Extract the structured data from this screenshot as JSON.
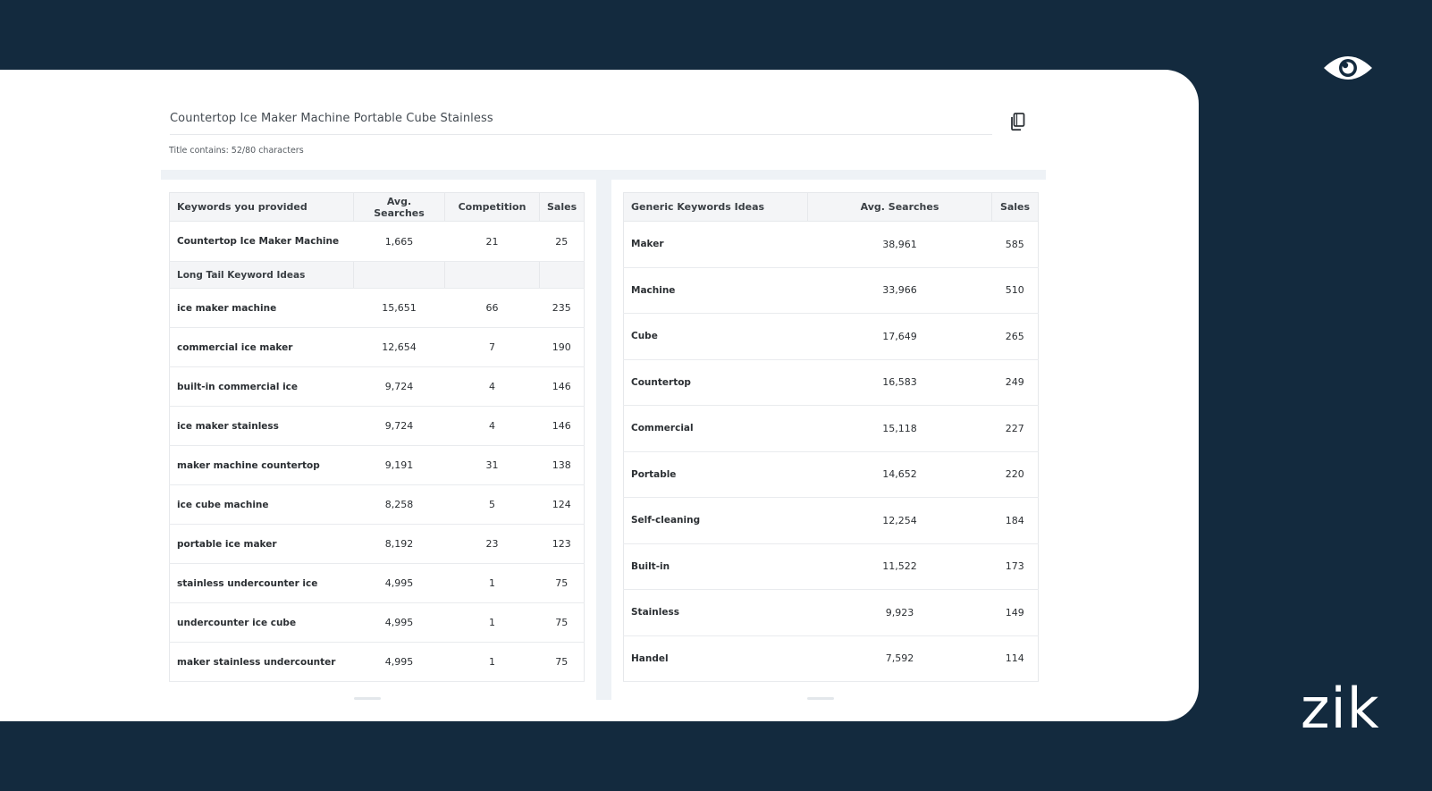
{
  "title": {
    "text": "Countertop Ice Maker Machine Portable Cube Stainless",
    "char_count": "Title contains: 52/80 characters"
  },
  "left_table": {
    "headers": [
      "Keywords you provided",
      "Avg. Searches",
      "Competition",
      "Sales"
    ],
    "provided": [
      "Countertop Ice Maker Machine",
      "1,665",
      "21",
      "25"
    ],
    "section_label": "Long Tail Keyword Ideas",
    "rows": [
      [
        "ice maker machine",
        "15,651",
        "66",
        "235"
      ],
      [
        "commercial ice maker",
        "12,654",
        "7",
        "190"
      ],
      [
        "built-in commercial ice",
        "9,724",
        "4",
        "146"
      ],
      [
        "ice maker stainless",
        "9,724",
        "4",
        "146"
      ],
      [
        "maker machine countertop",
        "9,191",
        "31",
        "138"
      ],
      [
        "ice cube machine",
        "8,258",
        "5",
        "124"
      ],
      [
        "portable ice maker",
        "8,192",
        "23",
        "123"
      ],
      [
        "stainless undercounter ice",
        "4,995",
        "1",
        "75"
      ],
      [
        "undercounter ice cube",
        "4,995",
        "1",
        "75"
      ],
      [
        "maker stainless undercounter",
        "4,995",
        "1",
        "75"
      ]
    ]
  },
  "right_table": {
    "headers": [
      "Generic Keywords Ideas",
      "Avg. Searches",
      "Sales"
    ],
    "rows": [
      [
        "Maker",
        "38,961",
        "585"
      ],
      [
        "Machine",
        "33,966",
        "510"
      ],
      [
        "Cube",
        "17,649",
        "265"
      ],
      [
        "Countertop",
        "16,583",
        "249"
      ],
      [
        "Commercial",
        "15,118",
        "227"
      ],
      [
        "Portable",
        "14,652",
        "220"
      ],
      [
        "Self-cleaning",
        "12,254",
        "184"
      ],
      [
        "Built-in",
        "11,522",
        "173"
      ],
      [
        "Stainless",
        "9,923",
        "149"
      ],
      [
        "Handel",
        "7,592",
        "114"
      ]
    ]
  },
  "icons": {
    "copy": "copy-icon",
    "logo": "eye-icon"
  },
  "brand": "zik",
  "colors": {
    "background": "#132a3e",
    "card": "#ffffff",
    "header_bg": "#f4f5f7"
  }
}
